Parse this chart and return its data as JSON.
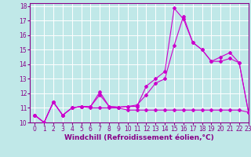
{
  "xlabel": "Windchill (Refroidissement éolien,°C)",
  "bg_color": "#c0e8e8",
  "grid_color": "#ffffff",
  "line_color": "#cc00cc",
  "xlim": [
    -0.5,
    23
  ],
  "ylim": [
    10,
    18.2
  ],
  "xticks": [
    0,
    1,
    2,
    3,
    4,
    5,
    6,
    7,
    8,
    9,
    10,
    11,
    12,
    13,
    14,
    15,
    16,
    17,
    18,
    19,
    20,
    21,
    22,
    23
  ],
  "yticks": [
    10,
    11,
    12,
    13,
    14,
    15,
    16,
    17,
    18
  ],
  "line1_x": [
    0,
    1,
    2,
    3,
    4,
    5,
    6,
    7,
    8,
    9,
    10,
    11,
    12,
    13,
    14,
    15,
    16,
    17,
    18,
    19,
    20,
    21,
    22,
    23
  ],
  "line1_y": [
    10.5,
    10.0,
    11.4,
    10.5,
    11.0,
    11.1,
    11.1,
    11.9,
    11.1,
    11.05,
    11.1,
    11.1,
    12.5,
    13.0,
    13.5,
    17.85,
    17.1,
    15.5,
    15.0,
    14.2,
    14.2,
    14.4,
    14.1,
    10.7
  ],
  "line2_x": [
    0,
    1,
    2,
    3,
    4,
    5,
    6,
    7,
    8,
    9,
    10,
    11,
    12,
    13,
    14,
    15,
    16,
    17,
    18,
    19,
    20,
    21,
    22,
    23
  ],
  "line2_y": [
    10.5,
    10.0,
    11.4,
    10.5,
    11.0,
    11.1,
    11.1,
    12.1,
    11.1,
    11.05,
    11.1,
    11.2,
    11.9,
    12.7,
    13.0,
    15.3,
    17.3,
    15.5,
    15.0,
    14.2,
    14.5,
    14.8,
    14.1,
    10.7
  ],
  "line3_x": [
    0,
    1,
    2,
    3,
    4,
    5,
    6,
    7,
    8,
    9,
    10,
    11,
    12,
    13,
    14,
    15,
    16,
    17,
    18,
    19,
    20,
    21,
    22,
    23
  ],
  "line3_y": [
    10.5,
    10.0,
    11.4,
    10.5,
    11.0,
    11.1,
    11.0,
    11.0,
    11.0,
    11.0,
    10.85,
    10.85,
    10.85,
    10.85,
    10.85,
    10.85,
    10.85,
    10.85,
    10.85,
    10.85,
    10.85,
    10.85,
    10.85,
    10.7
  ],
  "marker": "D",
  "marker_size": 2.0,
  "line_width": 0.8,
  "tick_fontsize": 5.5,
  "xlabel_fontsize": 6.5,
  "tick_color": "#880088",
  "spine_color": "#880088",
  "label_color": "#880088"
}
